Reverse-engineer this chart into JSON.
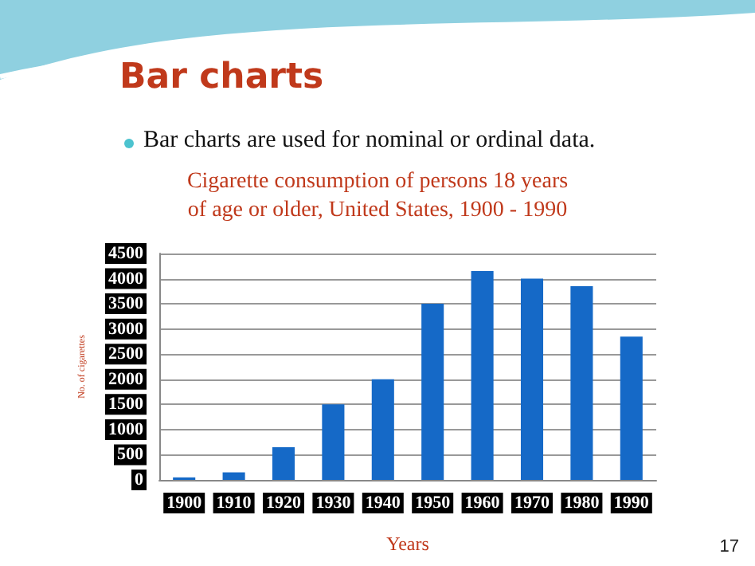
{
  "chart_data": {
    "type": "bar",
    "title": "Cigarette consumption of persons 18 years\nof age or older, United States, 1900 - 1990",
    "xlabel": "Years",
    "ylabel": "No. of cigarettes",
    "annotations": [
      "Bar charts",
      "Bar charts are used for nominal or ordinal data.",
      "17"
    ],
    "categories": [
      "1900",
      "1910",
      "1920",
      "1930",
      "1940",
      "1950",
      "1960",
      "1970",
      "1980",
      "1990"
    ],
    "values": [
      50,
      150,
      650,
      1500,
      2000,
      3500,
      4150,
      4000,
      3850,
      2850
    ],
    "color": "#1569c7",
    "ylim": [
      0,
      4500
    ],
    "yticks": [
      0,
      500,
      1000,
      1500,
      2000,
      2500,
      3000,
      3500,
      4000,
      4500
    ],
    "grid": "y"
  }
}
